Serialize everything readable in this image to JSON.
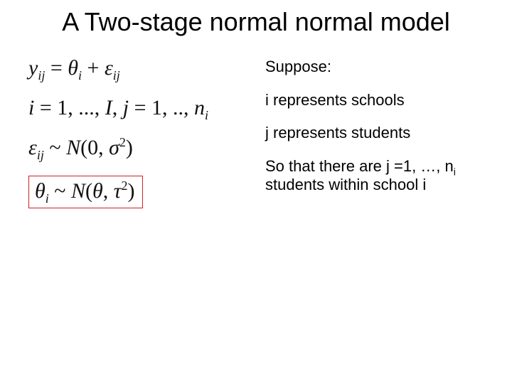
{
  "title": "A Two-stage normal normal model",
  "equations": {
    "eq1_html": "<i>y</i><sub>ij</sub> <span class='rm'>=</span> <i>&theta;</i><sub>i</sub> <span class='rm'>+</span> <i>&epsilon;</i><sub>ij</sub>",
    "eq2_html": "<i>i</i> <span class='rm'>= 1, ..., </span><i>I</i><span class='rm'>, </span><i>j</i> <span class='rm'>= 1, .., </span><i>n</i><sub>i</sub>",
    "eq3_html": "<i>&epsilon;</i><sub>ij</sub> <span class='rm'>~</span> <i>N</i><span class='rm'>(0, </span><i>&sigma;</i><sup><span class='rm'>2</span></sup><span class='rm'>)</span>",
    "eq4_html": "<i>&theta;</i><sub>i</sub> <span class='rm'>~</span> <i>N</i><span class='rm'>(</span><i>&theta;</i><span class='rm'>, </span><i>&tau;</i><sup><span class='rm'>2</span></sup><span class='rm'>)</span>"
  },
  "notes": {
    "n1": "Suppose:",
    "n2": "i represents schools",
    "n3": "j represents students",
    "n4_html": "So that there are j =1, &hellip;, n<sub>i</sub> students within school i"
  },
  "styling": {
    "background_color": "#ffffff",
    "title_fontsize": 36,
    "equation_fontsize": 30,
    "note_fontsize": 22,
    "box_border_color": "#d02020",
    "box_border_width": 1.5,
    "text_color": "#000000",
    "equation_font": "Times New Roman",
    "body_font": "Arial"
  }
}
